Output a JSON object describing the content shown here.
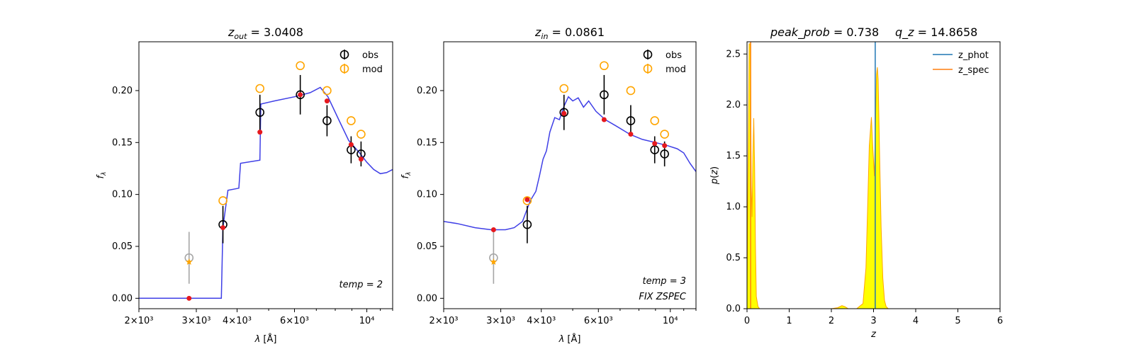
{
  "chart_data": [
    {
      "type": "scatter",
      "title": "z_out = 3.0408",
      "xlabel": "λ [Å]",
      "ylabel": "f_λ",
      "xscale": "log",
      "xlim": [
        2000,
        12000
      ],
      "ylim": [
        -0.01,
        0.247
      ],
      "xticks": [
        2000,
        3000,
        4000,
        6000,
        10000
      ],
      "xtick_labels": [
        "2×10³",
        "3×10³",
        "4×10³",
        "6×10³",
        "10⁴"
      ],
      "yticks": [
        0.0,
        0.05,
        0.1,
        0.15,
        0.2
      ],
      "ytick_labels": [
        "0.00",
        "0.05",
        "0.10",
        "0.15",
        "0.20"
      ],
      "legend": {
        "position": "top-right",
        "entries": [
          "obs",
          "mod"
        ]
      },
      "annotations": [
        {
          "text": "temp = 2",
          "position": "bottom-right"
        }
      ],
      "series": [
        {
          "name": "model spectrum",
          "style": "line",
          "color": "#3f3fe6",
          "x": [
            2000,
            3580,
            3620,
            3750,
            4050,
            4100,
            4700,
            4730,
            5200,
            6000,
            6700,
            7200,
            7600,
            8200,
            8800,
            9500,
            10000,
            10500,
            11000,
            11500,
            12000
          ],
          "y": [
            0.0,
            0.0,
            0.068,
            0.104,
            0.106,
            0.13,
            0.133,
            0.187,
            0.19,
            0.194,
            0.198,
            0.203,
            0.194,
            0.172,
            0.152,
            0.14,
            0.131,
            0.124,
            0.12,
            0.121,
            0.124
          ]
        },
        {
          "name": "obs",
          "style": "open-circle-errorbar",
          "color": "#000000",
          "x": [
            3620,
            4700,
            6250,
            7550,
            8950,
            9600
          ],
          "y": [
            0.071,
            0.179,
            0.196,
            0.171,
            0.143,
            0.139
          ],
          "yerr": [
            0.018,
            0.017,
            0.019,
            0.015,
            0.013,
            0.012
          ]
        },
        {
          "name": "obs-upper",
          "style": "open-circle-errorbar",
          "color": "#a6a6a6",
          "x": [
            2850
          ],
          "y": [
            0.039
          ],
          "yerr": [
            0.025
          ]
        },
        {
          "name": "mod",
          "style": "open-circle",
          "color": "#ffa500",
          "x": [
            3620,
            4700,
            6250,
            7550,
            8950,
            9600
          ],
          "y": [
            0.094,
            0.202,
            0.224,
            0.2,
            0.171,
            0.158
          ]
        },
        {
          "name": "mod-star",
          "style": "star",
          "color": "#ffa500",
          "x": [
            2850
          ],
          "y": [
            0.035
          ]
        },
        {
          "name": "band flux",
          "style": "dot",
          "color": "#e6191e",
          "x": [
            2850,
            3620,
            4700,
            6250,
            7550,
            8950,
            9600
          ],
          "y": [
            0.0,
            0.068,
            0.16,
            0.196,
            0.19,
            0.148,
            0.134
          ]
        }
      ]
    },
    {
      "type": "scatter",
      "title": "z_in = 0.0861",
      "xlabel": "λ [Å]",
      "ylabel": "f_λ",
      "xscale": "log",
      "xlim": [
        2000,
        12000
      ],
      "ylim": [
        -0.01,
        0.247
      ],
      "xticks": [
        2000,
        3000,
        4000,
        6000,
        10000
      ],
      "xtick_labels": [
        "2×10³",
        "3×10³",
        "4×10³",
        "6×10³",
        "10⁴"
      ],
      "yticks": [
        0.0,
        0.05,
        0.1,
        0.15,
        0.2
      ],
      "ytick_labels": [
        "0.00",
        "0.05",
        "0.10",
        "0.15",
        "0.20"
      ],
      "legend": {
        "position": "top-right",
        "entries": [
          "obs",
          "mod"
        ]
      },
      "annotations": [
        {
          "text": "temp = 3",
          "position": "bottom-right"
        },
        {
          "text": "FIX ZSPEC",
          "position": "bottom-right"
        }
      ],
      "series": [
        {
          "name": "model spectrum",
          "style": "line",
          "color": "#3f3fe6",
          "x": [
            2000,
            2200,
            2500,
            2800,
            3100,
            3300,
            3500,
            3700,
            3850,
            3950,
            4050,
            4150,
            4250,
            4400,
            4550,
            4700,
            4850,
            5000,
            5200,
            5400,
            5600,
            5900,
            6300,
            6800,
            7500,
            8200,
            9000,
            9800,
            10500,
            11000,
            11500,
            12000
          ],
          "y": [
            0.074,
            0.072,
            0.068,
            0.066,
            0.066,
            0.068,
            0.074,
            0.094,
            0.103,
            0.118,
            0.134,
            0.142,
            0.16,
            0.174,
            0.172,
            0.185,
            0.194,
            0.19,
            0.193,
            0.184,
            0.19,
            0.18,
            0.172,
            0.166,
            0.158,
            0.153,
            0.15,
            0.147,
            0.144,
            0.14,
            0.13,
            0.122
          ]
        },
        {
          "name": "obs",
          "style": "open-circle-errorbar",
          "color": "#000000",
          "x": [
            3620,
            4700,
            6250,
            7550,
            8950,
            9600
          ],
          "y": [
            0.071,
            0.179,
            0.196,
            0.171,
            0.143,
            0.139
          ],
          "yerr": [
            0.018,
            0.017,
            0.019,
            0.015,
            0.013,
            0.012
          ]
        },
        {
          "name": "obs-upper",
          "style": "open-circle-errorbar",
          "color": "#a6a6a6",
          "x": [
            2850
          ],
          "y": [
            0.039
          ],
          "yerr": [
            0.025
          ]
        },
        {
          "name": "mod",
          "style": "open-circle",
          "color": "#ffa500",
          "x": [
            3620,
            4700,
            6250,
            7550,
            8950,
            9600
          ],
          "y": [
            0.094,
            0.202,
            0.224,
            0.2,
            0.171,
            0.158
          ]
        },
        {
          "name": "mod-star",
          "style": "star",
          "color": "#ffa500",
          "x": [
            2850
          ],
          "y": [
            0.035
          ]
        },
        {
          "name": "band flux",
          "style": "dot",
          "color": "#e6191e",
          "x": [
            2850,
            3620,
            4700,
            6250,
            7550,
            8950,
            9600
          ],
          "y": [
            0.066,
            0.095,
            0.178,
            0.172,
            0.158,
            0.149,
            0.147
          ]
        }
      ]
    },
    {
      "type": "area",
      "title_left": "peak_prob = 0.738",
      "title_right": "q_z = 14.8658",
      "xlabel": "z",
      "ylabel": "p(z)",
      "xlim": [
        0,
        6
      ],
      "ylim": [
        0,
        2.62
      ],
      "xticks": [
        0,
        1,
        2,
        3,
        4,
        5,
        6
      ],
      "xtick_labels": [
        "0",
        "1",
        "2",
        "3",
        "4",
        "5",
        "6"
      ],
      "yticks": [
        0.0,
        0.5,
        1.0,
        1.5,
        2.0,
        2.5
      ],
      "ytick_labels": [
        "0.0",
        "0.5",
        "1.0",
        "1.5",
        "2.0",
        "2.5"
      ],
      "legend": {
        "position": "top-right",
        "entries": [
          "z_phot",
          "z_spec"
        ]
      },
      "vlines": [
        {
          "name": "z_phot",
          "x": 3.04,
          "color": "#1f77b4"
        },
        {
          "name": "z_spec",
          "x": 0.086,
          "color": "#ff7f0e"
        }
      ],
      "pdf": {
        "fill": "#ffff00",
        "stroke": "#ffa500",
        "x": [
          0.0,
          0.02,
          0.05,
          0.08,
          0.1,
          0.12,
          0.14,
          0.16,
          0.18,
          0.2,
          0.22,
          0.26,
          0.3,
          0.4,
          1.0,
          2.0,
          2.15,
          2.25,
          2.32,
          2.4,
          2.6,
          2.75,
          2.82,
          2.86,
          2.9,
          2.95,
          2.98,
          3.02,
          3.05,
          3.07,
          3.09,
          3.11,
          3.14,
          3.18,
          3.22,
          3.26,
          3.3,
          3.35,
          3.5,
          5.0
        ],
        "y": [
          0.15,
          1.2,
          2.6,
          2.6,
          1.2,
          0.9,
          1.5,
          1.87,
          1.4,
          0.6,
          0.12,
          0.02,
          0.0,
          0.0,
          0.0,
          0.0,
          0.01,
          0.03,
          0.02,
          0.0,
          0.0,
          0.05,
          0.4,
          1.0,
          1.6,
          1.88,
          1.6,
          1.3,
          1.9,
          2.3,
          2.37,
          2.25,
          1.6,
          0.8,
          0.3,
          0.08,
          0.02,
          0.0,
          0.0,
          0.0
        ]
      }
    }
  ]
}
